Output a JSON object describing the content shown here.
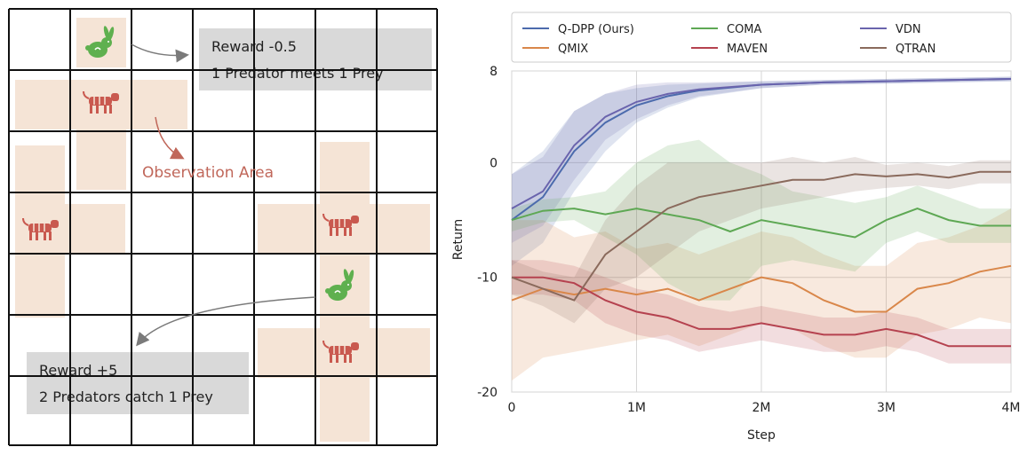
{
  "grid_figure": {
    "rows": 7,
    "cols": 7,
    "callout_top": {
      "line1": "Reward -0.5",
      "line2": "1 Predator meets 1 Prey"
    },
    "callout_bottom": {
      "line1": "Reward +5",
      "line2": "2 Predators catch 1 Prey"
    },
    "observation_label": "Observation Area",
    "icons": {
      "prey": "rabbit-icon",
      "predator": "tiger-icon"
    },
    "colors": {
      "prey": "#5fb04f",
      "predator": "#c9594f",
      "observation_area": "#f5e4d6",
      "callout": "#d9d9d9",
      "observation_text": "#c0675a"
    }
  },
  "chart_data": {
    "type": "line",
    "xlabel": "Step",
    "ylabel": "Return",
    "xlim": [
      0,
      4
    ],
    "ylim": [
      -20,
      8
    ],
    "x_ticks": [
      {
        "value": 0,
        "label": "0"
      },
      {
        "value": 1,
        "label": "1M"
      },
      {
        "value": 2,
        "label": "2M"
      },
      {
        "value": 3,
        "label": "3M"
      },
      {
        "value": 4,
        "label": "4M"
      }
    ],
    "y_ticks": [
      {
        "value": 8,
        "label": "8"
      },
      {
        "value": 0,
        "label": "0"
      },
      {
        "value": -10,
        "label": "-10"
      },
      {
        "value": -20,
        "label": "-20"
      }
    ],
    "grid": true,
    "legend": {
      "position": "top",
      "columns": 3
    },
    "series": [
      {
        "name": "Q-DPP (Ours)",
        "color": "#4c6bad",
        "x": [
          0,
          0.25,
          0.5,
          0.75,
          1.0,
          1.25,
          1.5,
          2.0,
          2.5,
          3.0,
          3.5,
          4.0
        ],
        "y": [
          -5,
          -3,
          1,
          3.5,
          5,
          5.8,
          6.3,
          6.8,
          7.0,
          7.1,
          7.2,
          7.3
        ],
        "band": [
          4,
          4,
          3.5,
          2.5,
          1.5,
          1,
          0.6,
          0.3,
          0.2,
          0.2,
          0.2,
          0.2
        ]
      },
      {
        "name": "QMIX",
        "color": "#d9874a",
        "x": [
          0,
          0.25,
          0.5,
          0.75,
          1.0,
          1.25,
          1.5,
          1.75,
          2.0,
          2.25,
          2.5,
          2.75,
          3.0,
          3.25,
          3.5,
          3.75,
          4.0
        ],
        "y": [
          -12,
          -11,
          -11.5,
          -11,
          -11.5,
          -11,
          -12,
          -11,
          -10,
          -10.5,
          -12,
          -13,
          -13,
          -11,
          -10.5,
          -9.5,
          -9
        ],
        "band": [
          7,
          6,
          5,
          5,
          4,
          4,
          4,
          4,
          4,
          4,
          4,
          4,
          4,
          4,
          4,
          4,
          5
        ]
      },
      {
        "name": "VDN",
        "color": "#6a64ad",
        "x": [
          0,
          0.25,
          0.5,
          0.75,
          1.0,
          1.25,
          1.5,
          2.0,
          2.5,
          3.0,
          3.5,
          4.0
        ],
        "y": [
          -4,
          -2.5,
          1.5,
          4,
          5.3,
          6,
          6.4,
          6.8,
          7.0,
          7.1,
          7.2,
          7.3
        ],
        "band": [
          3,
          3,
          3,
          2,
          1.5,
          1,
          0.6,
          0.3,
          0.2,
          0.2,
          0.2,
          0.2
        ]
      },
      {
        "name": "COMA",
        "color": "#5ea854",
        "x": [
          0,
          0.25,
          0.5,
          0.75,
          1.0,
          1.25,
          1.5,
          1.75,
          2.0,
          2.25,
          2.5,
          2.75,
          3.0,
          3.25,
          3.5,
          3.75,
          4.0
        ],
        "y": [
          -5,
          -4.2,
          -4,
          -4.5,
          -4,
          -4.5,
          -5,
          -6,
          -5,
          -5.5,
          -6,
          -6.5,
          -5,
          -4,
          -5,
          -5.5,
          -5.5
        ],
        "band": [
          1,
          1,
          1,
          2,
          4,
          6,
          7,
          6,
          4,
          3,
          3,
          3,
          2,
          2,
          2,
          1.5,
          1.5
        ]
      },
      {
        "name": "MAVEN",
        "color": "#b5424f",
        "x": [
          0,
          0.25,
          0.5,
          0.75,
          1.0,
          1.25,
          1.5,
          1.75,
          2.0,
          2.25,
          2.5,
          2.75,
          3.0,
          3.25,
          3.5,
          3.75,
          4.0
        ],
        "y": [
          -10,
          -10,
          -10.5,
          -12,
          -13,
          -13.5,
          -14.5,
          -14.5,
          -14,
          -14.5,
          -15,
          -15,
          -14.5,
          -15,
          -16,
          -16,
          -16
        ],
        "band": [
          1.5,
          1.5,
          1.5,
          2,
          2,
          2,
          2,
          1.5,
          1.5,
          1.5,
          1.5,
          1.5,
          1.5,
          1.5,
          1.5,
          1.5,
          1.5
        ]
      },
      {
        "name": "QTRAN",
        "color": "#8a6a5c",
        "x": [
          0,
          0.25,
          0.5,
          0.75,
          1.0,
          1.25,
          1.5,
          1.75,
          2.0,
          2.25,
          2.5,
          2.75,
          3.0,
          3.25,
          3.5,
          3.75,
          4.0
        ],
        "y": [
          -10,
          -11,
          -12,
          -8,
          -6,
          -4,
          -3,
          -2.5,
          -2,
          -1.5,
          -1.5,
          -1,
          -1.2,
          -1,
          -1.3,
          -0.8,
          -0.8
        ],
        "band": [
          1.5,
          1.5,
          2,
          3,
          4,
          4,
          3,
          2.5,
          2,
          2,
          1.5,
          1.5,
          1,
          1,
          1,
          1,
          1
        ]
      }
    ]
  }
}
